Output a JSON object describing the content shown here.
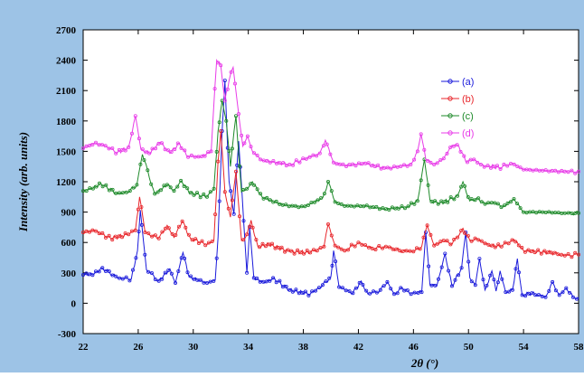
{
  "chart_data": {
    "type": "line",
    "title": "",
    "xlabel": "2θ (°)",
    "ylabel": "Intensity (arb. units)",
    "xlim": [
      22,
      58
    ],
    "ylim": [
      -300,
      2700
    ],
    "xticks": [
      22,
      26,
      30,
      34,
      38,
      42,
      46,
      50,
      54,
      58
    ],
    "yticks": [
      -300,
      0,
      300,
      600,
      900,
      1200,
      1500,
      1800,
      2100,
      2400,
      2700
    ],
    "grid": false,
    "legend_position": "top-right",
    "series": [
      {
        "name": "(a)",
        "color": "#1a1adb",
        "x": [
          22,
          22.8,
          23.4,
          24.5,
          25.5,
          25.95,
          26.15,
          26.6,
          27.5,
          28.3,
          28.7,
          29.25,
          29.7,
          31,
          31.6,
          31.8,
          32.1,
          32.3,
          32.6,
          32.95,
          33.3,
          33.9,
          34.1,
          34.4,
          35.2,
          35.8,
          37,
          38.5,
          39.4,
          40.0,
          40.2,
          40.6,
          41.6,
          42.2,
          42.7,
          43.6,
          44.1,
          44.6,
          45.2,
          45.7,
          46.6,
          46.9,
          47.2,
          47.7,
          48.3,
          48.8,
          49.5,
          49.8,
          50.1,
          50.5,
          50.8,
          51.2,
          51.7,
          52.0,
          52.3,
          52.7,
          53.2,
          53.55,
          53.9,
          54.6,
          55.6,
          56.1,
          56.6,
          57.1,
          57.6,
          58
        ],
        "values": [
          280,
          290,
          350,
          250,
          240,
          520,
          920,
          330,
          220,
          340,
          200,
          500,
          260,
          200,
          230,
          650,
          1700,
          2200,
          1200,
          880,
          1600,
          300,
          750,
          250,
          200,
          250,
          130,
          90,
          180,
          260,
          520,
          160,
          100,
          220,
          90,
          130,
          210,
          90,
          150,
          100,
          110,
          700,
          180,
          170,
          490,
          170,
          350,
          700,
          250,
          180,
          440,
          130,
          320,
          120,
          320,
          110,
          130,
          440,
          80,
          100,
          60,
          210,
          80,
          150,
          60,
          60
        ]
      },
      {
        "name": "(b)",
        "color": "#e8262b",
        "x": [
          22,
          22.8,
          24,
          25.3,
          25.8,
          26.1,
          26.5,
          27.5,
          28.1,
          28.6,
          29.2,
          29.8,
          31,
          31.5,
          31.8,
          32.0,
          32.3,
          32.7,
          33.1,
          33.5,
          33.9,
          34.2,
          34.7,
          35.5,
          37,
          38.5,
          39.5,
          39.8,
          40.3,
          41,
          42,
          43,
          44,
          45,
          46,
          46.6,
          47,
          47.5,
          48.2,
          48.7,
          49.2,
          49.6,
          50.1,
          50.6,
          51.2,
          51.7,
          52.4,
          53.3,
          54,
          56,
          57,
          58
        ],
        "values": [
          700,
          720,
          640,
          680,
          720,
          1050,
          700,
          640,
          770,
          650,
          810,
          640,
          580,
          620,
          1400,
          1700,
          1100,
          850,
          1300,
          620,
          680,
          820,
          560,
          580,
          510,
          500,
          560,
          780,
          570,
          520,
          600,
          540,
          560,
          520,
          510,
          560,
          770,
          570,
          620,
          580,
          650,
          740,
          620,
          640,
          590,
          570,
          560,
          630,
          520,
          500,
          470,
          480
        ]
      },
      {
        "name": "(c)",
        "color": "#1e8a2a",
        "x": [
          22,
          22.6,
          23.3,
          24.5,
          25.4,
          25.9,
          26.3,
          27.2,
          28.1,
          28.6,
          29.1,
          29.8,
          31,
          31.5,
          31.8,
          32.1,
          32.4,
          32.7,
          33.1,
          33.5,
          33.9,
          34.3,
          35,
          36.5,
          38,
          39.4,
          39.8,
          40.3,
          41,
          42.5,
          44,
          45.5,
          46.3,
          46.8,
          47.2,
          47.8,
          48.6,
          49.2,
          49.6,
          50.1,
          50.6,
          51.2,
          51.8,
          52.5,
          53.3,
          54,
          55.5,
          57,
          58
        ],
        "values": [
          1110,
          1130,
          1180,
          1080,
          1110,
          1170,
          1470,
          1080,
          1170,
          1110,
          1210,
          1090,
          1050,
          1130,
          1700,
          2000,
          1800,
          1350,
          1850,
          1100,
          1130,
          1200,
          1050,
          970,
          950,
          1040,
          1200,
          1000,
          960,
          960,
          930,
          950,
          1010,
          1420,
          1020,
          980,
          1020,
          1060,
          1200,
          1010,
          1040,
          980,
          1000,
          950,
          1030,
          900,
          900,
          890,
          890
        ]
      },
      {
        "name": "(d)",
        "color": "#e83be8",
        "x": [
          22,
          22.8,
          23.5,
          24.5,
          25.3,
          25.8,
          26.2,
          26.8,
          27.6,
          28.3,
          29,
          29.5,
          30.5,
          31.3,
          31.7,
          32.0,
          32.3,
          32.6,
          32.9,
          33.3,
          33.6,
          33.95,
          34.3,
          35,
          37,
          39.2,
          39.6,
          40.2,
          41,
          42.5,
          44,
          45.8,
          46.3,
          46.55,
          46.9,
          47.5,
          48.2,
          48.8,
          49.3,
          49.8,
          50.4,
          50.9,
          51.4,
          52.2,
          53.2,
          54,
          55.5,
          57,
          58
        ],
        "values": [
          1530,
          1580,
          1560,
          1490,
          1540,
          1850,
          1520,
          1480,
          1590,
          1480,
          1580,
          1460,
          1440,
          1500,
          2400,
          2350,
          2000,
          2200,
          2330,
          1870,
          1550,
          1650,
          1500,
          1410,
          1370,
          1480,
          1610,
          1390,
          1360,
          1380,
          1330,
          1370,
          1500,
          1670,
          1420,
          1370,
          1430,
          1560,
          1550,
          1400,
          1420,
          1370,
          1360,
          1340,
          1380,
          1320,
          1310,
          1300,
          1300
        ]
      }
    ]
  }
}
